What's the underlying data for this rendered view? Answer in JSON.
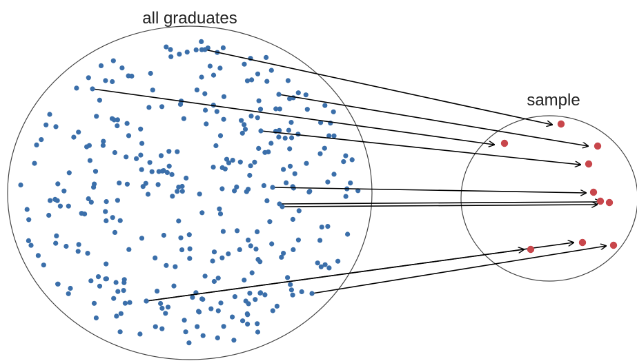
{
  "population": {
    "label": "all graduates",
    "dot_color": "#3b6faa"
  },
  "sample": {
    "label": "sample",
    "dot_color": "#c8464b"
  },
  "arrow_color": "#000000"
}
